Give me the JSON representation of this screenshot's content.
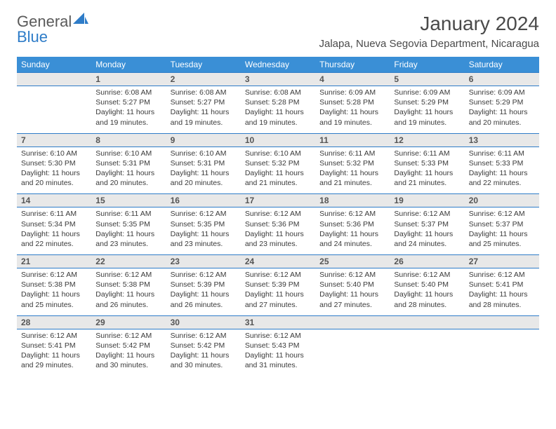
{
  "brand": {
    "part1": "General",
    "part2": "Blue"
  },
  "title": "January 2024",
  "location": "Jalapa, Nueva Segovia Department, Nicaragua",
  "colors": {
    "header_bg": "#3a8fd6",
    "stripe_bg": "#e8e8e8",
    "border": "#2e7cc8",
    "text": "#333333",
    "logo_gray": "#5a5a5a",
    "logo_blue": "#2e7cc8"
  },
  "typography": {
    "title_fontsize": 28,
    "location_fontsize": 15,
    "weekday_fontsize": 12,
    "daynum_fontsize": 12,
    "info_fontsize": 10.5
  },
  "weekdays": [
    "Sunday",
    "Monday",
    "Tuesday",
    "Wednesday",
    "Thursday",
    "Friday",
    "Saturday"
  ],
  "weeks": [
    {
      "nums": [
        "",
        "1",
        "2",
        "3",
        "4",
        "5",
        "6"
      ],
      "cells": [
        null,
        {
          "sunrise": "Sunrise: 6:08 AM",
          "sunset": "Sunset: 5:27 PM",
          "day1": "Daylight: 11 hours",
          "day2": "and 19 minutes."
        },
        {
          "sunrise": "Sunrise: 6:08 AM",
          "sunset": "Sunset: 5:27 PM",
          "day1": "Daylight: 11 hours",
          "day2": "and 19 minutes."
        },
        {
          "sunrise": "Sunrise: 6:08 AM",
          "sunset": "Sunset: 5:28 PM",
          "day1": "Daylight: 11 hours",
          "day2": "and 19 minutes."
        },
        {
          "sunrise": "Sunrise: 6:09 AM",
          "sunset": "Sunset: 5:28 PM",
          "day1": "Daylight: 11 hours",
          "day2": "and 19 minutes."
        },
        {
          "sunrise": "Sunrise: 6:09 AM",
          "sunset": "Sunset: 5:29 PM",
          "day1": "Daylight: 11 hours",
          "day2": "and 19 minutes."
        },
        {
          "sunrise": "Sunrise: 6:09 AM",
          "sunset": "Sunset: 5:29 PM",
          "day1": "Daylight: 11 hours",
          "day2": "and 20 minutes."
        }
      ]
    },
    {
      "nums": [
        "7",
        "8",
        "9",
        "10",
        "11",
        "12",
        "13"
      ],
      "cells": [
        {
          "sunrise": "Sunrise: 6:10 AM",
          "sunset": "Sunset: 5:30 PM",
          "day1": "Daylight: 11 hours",
          "day2": "and 20 minutes."
        },
        {
          "sunrise": "Sunrise: 6:10 AM",
          "sunset": "Sunset: 5:31 PM",
          "day1": "Daylight: 11 hours",
          "day2": "and 20 minutes."
        },
        {
          "sunrise": "Sunrise: 6:10 AM",
          "sunset": "Sunset: 5:31 PM",
          "day1": "Daylight: 11 hours",
          "day2": "and 20 minutes."
        },
        {
          "sunrise": "Sunrise: 6:10 AM",
          "sunset": "Sunset: 5:32 PM",
          "day1": "Daylight: 11 hours",
          "day2": "and 21 minutes."
        },
        {
          "sunrise": "Sunrise: 6:11 AM",
          "sunset": "Sunset: 5:32 PM",
          "day1": "Daylight: 11 hours",
          "day2": "and 21 minutes."
        },
        {
          "sunrise": "Sunrise: 6:11 AM",
          "sunset": "Sunset: 5:33 PM",
          "day1": "Daylight: 11 hours",
          "day2": "and 21 minutes."
        },
        {
          "sunrise": "Sunrise: 6:11 AM",
          "sunset": "Sunset: 5:33 PM",
          "day1": "Daylight: 11 hours",
          "day2": "and 22 minutes."
        }
      ]
    },
    {
      "nums": [
        "14",
        "15",
        "16",
        "17",
        "18",
        "19",
        "20"
      ],
      "cells": [
        {
          "sunrise": "Sunrise: 6:11 AM",
          "sunset": "Sunset: 5:34 PM",
          "day1": "Daylight: 11 hours",
          "day2": "and 22 minutes."
        },
        {
          "sunrise": "Sunrise: 6:11 AM",
          "sunset": "Sunset: 5:35 PM",
          "day1": "Daylight: 11 hours",
          "day2": "and 23 minutes."
        },
        {
          "sunrise": "Sunrise: 6:12 AM",
          "sunset": "Sunset: 5:35 PM",
          "day1": "Daylight: 11 hours",
          "day2": "and 23 minutes."
        },
        {
          "sunrise": "Sunrise: 6:12 AM",
          "sunset": "Sunset: 5:36 PM",
          "day1": "Daylight: 11 hours",
          "day2": "and 23 minutes."
        },
        {
          "sunrise": "Sunrise: 6:12 AM",
          "sunset": "Sunset: 5:36 PM",
          "day1": "Daylight: 11 hours",
          "day2": "and 24 minutes."
        },
        {
          "sunrise": "Sunrise: 6:12 AM",
          "sunset": "Sunset: 5:37 PM",
          "day1": "Daylight: 11 hours",
          "day2": "and 24 minutes."
        },
        {
          "sunrise": "Sunrise: 6:12 AM",
          "sunset": "Sunset: 5:37 PM",
          "day1": "Daylight: 11 hours",
          "day2": "and 25 minutes."
        }
      ]
    },
    {
      "nums": [
        "21",
        "22",
        "23",
        "24",
        "25",
        "26",
        "27"
      ],
      "cells": [
        {
          "sunrise": "Sunrise: 6:12 AM",
          "sunset": "Sunset: 5:38 PM",
          "day1": "Daylight: 11 hours",
          "day2": "and 25 minutes."
        },
        {
          "sunrise": "Sunrise: 6:12 AM",
          "sunset": "Sunset: 5:38 PM",
          "day1": "Daylight: 11 hours",
          "day2": "and 26 minutes."
        },
        {
          "sunrise": "Sunrise: 6:12 AM",
          "sunset": "Sunset: 5:39 PM",
          "day1": "Daylight: 11 hours",
          "day2": "and 26 minutes."
        },
        {
          "sunrise": "Sunrise: 6:12 AM",
          "sunset": "Sunset: 5:39 PM",
          "day1": "Daylight: 11 hours",
          "day2": "and 27 minutes."
        },
        {
          "sunrise": "Sunrise: 6:12 AM",
          "sunset": "Sunset: 5:40 PM",
          "day1": "Daylight: 11 hours",
          "day2": "and 27 minutes."
        },
        {
          "sunrise": "Sunrise: 6:12 AM",
          "sunset": "Sunset: 5:40 PM",
          "day1": "Daylight: 11 hours",
          "day2": "and 28 minutes."
        },
        {
          "sunrise": "Sunrise: 6:12 AM",
          "sunset": "Sunset: 5:41 PM",
          "day1": "Daylight: 11 hours",
          "day2": "and 28 minutes."
        }
      ]
    },
    {
      "nums": [
        "28",
        "29",
        "30",
        "31",
        "",
        "",
        ""
      ],
      "cells": [
        {
          "sunrise": "Sunrise: 6:12 AM",
          "sunset": "Sunset: 5:41 PM",
          "day1": "Daylight: 11 hours",
          "day2": "and 29 minutes."
        },
        {
          "sunrise": "Sunrise: 6:12 AM",
          "sunset": "Sunset: 5:42 PM",
          "day1": "Daylight: 11 hours",
          "day2": "and 30 minutes."
        },
        {
          "sunrise": "Sunrise: 6:12 AM",
          "sunset": "Sunset: 5:42 PM",
          "day1": "Daylight: 11 hours",
          "day2": "and 30 minutes."
        },
        {
          "sunrise": "Sunrise: 6:12 AM",
          "sunset": "Sunset: 5:43 PM",
          "day1": "Daylight: 11 hours",
          "day2": "and 31 minutes."
        },
        null,
        null,
        null
      ]
    }
  ]
}
